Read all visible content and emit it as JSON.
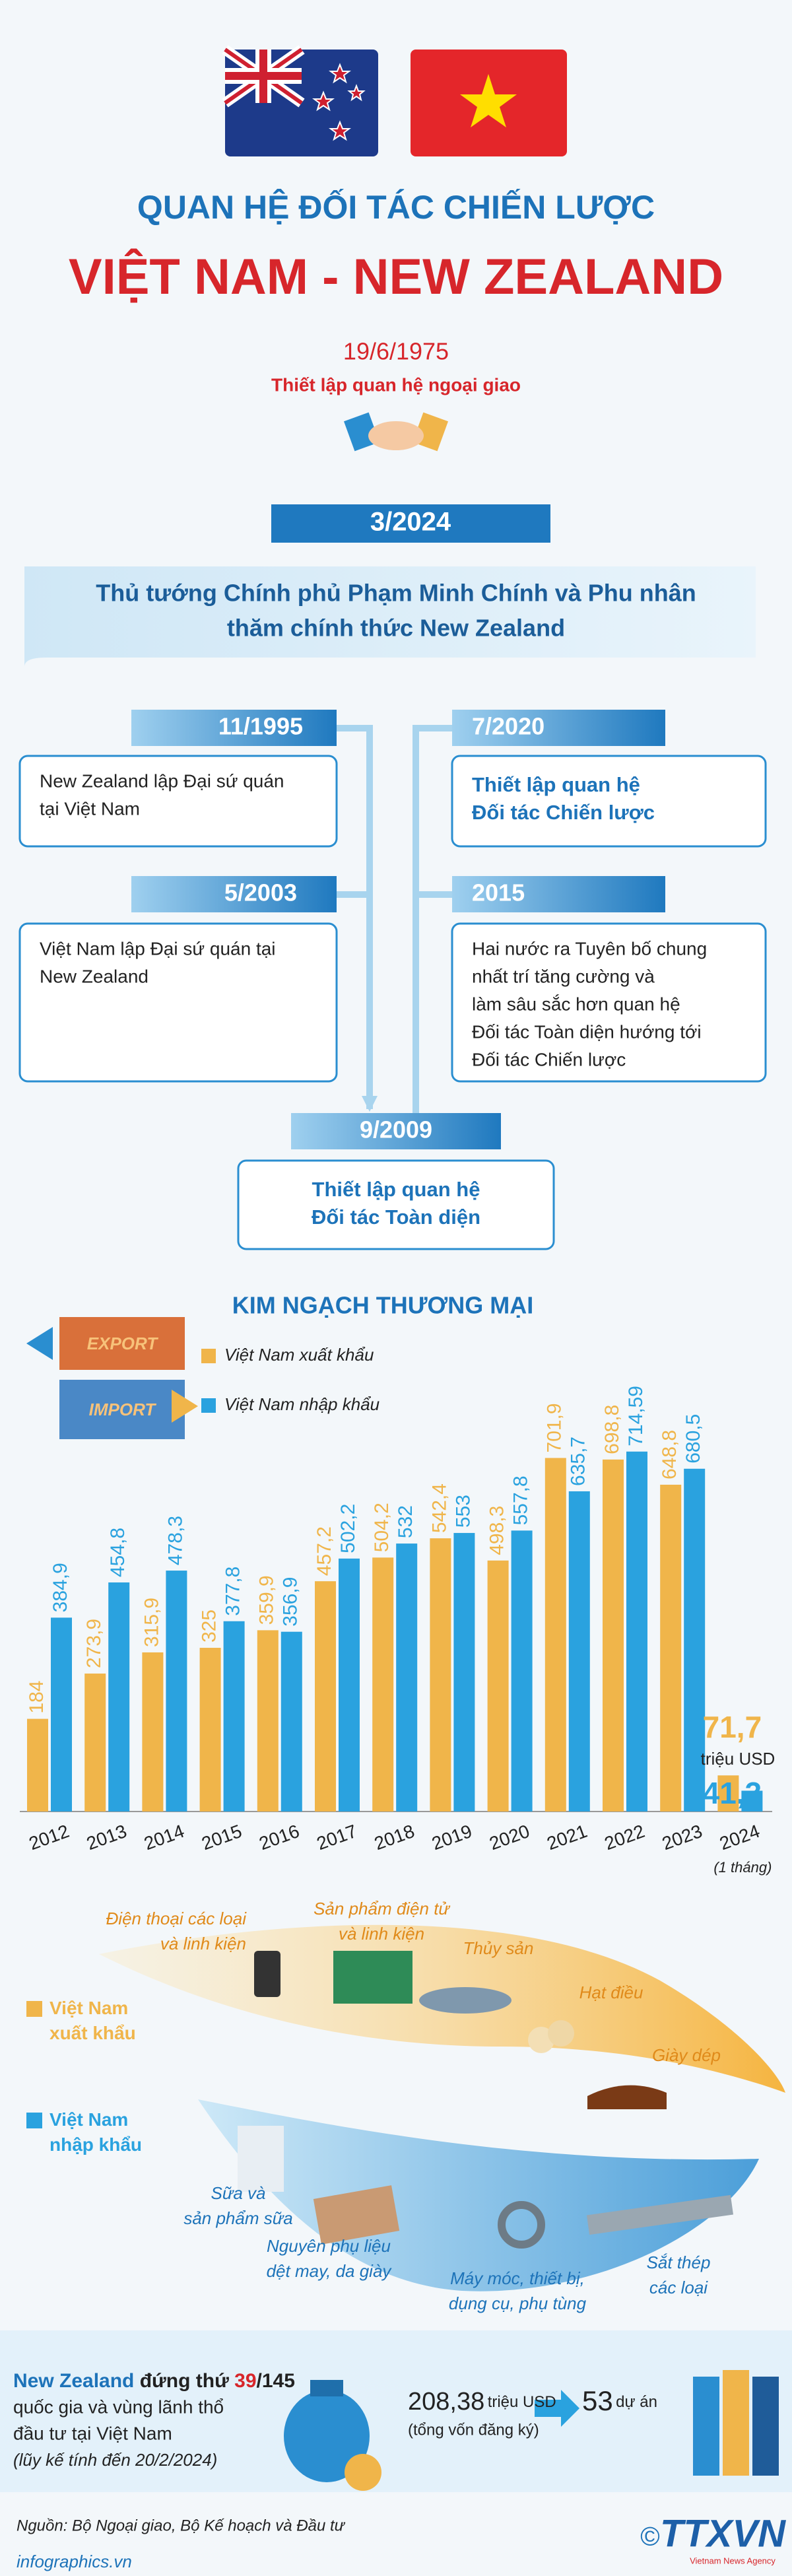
{
  "header": {
    "title": "QUAN HỆ ĐỐI TÁC CHIẾN LƯỢC",
    "subtitle": "VIỆT NAM - NEW ZEALAND",
    "date": "19/6/1975",
    "date_note": "Thiết lập quan hệ ngoại giao"
  },
  "highlight": {
    "date": "3/2024",
    "lines": [
      "Thủ tướng Chính phủ Phạm Minh Chính và Phu nhân",
      "thăm chính thức New Zealand"
    ]
  },
  "timeline": [
    {
      "date": "11/1995",
      "lines": [
        "New Zealand lập Đại sứ quán",
        "tại Việt Nam"
      ]
    },
    {
      "date": "5/2003",
      "lines": [
        "Việt Nam lập Đại sứ quán tại",
        "New Zealand"
      ]
    },
    {
      "date": "7/2020",
      "lines": [
        "Thiết lập quan hệ",
        "Đối tác Chiến lược"
      ]
    },
    {
      "date": "2015",
      "lines": [
        "Hai nước ra Tuyên bố chung",
        "nhất trí tăng cường và",
        "làm sâu sắc hơn quan hệ",
        "Đối tác Toàn diện hướng tới",
        "Đối tác Chiến lược"
      ]
    },
    {
      "date": "9/2009",
      "lines": [
        "Thiết lập quan hệ",
        "Đối tác Toàn diện"
      ]
    }
  ],
  "chart_data": {
    "type": "bar",
    "title": "KIM NGẠCH THƯƠNG MẠI",
    "unit": "triệu USD",
    "categories": [
      "2012",
      "2013",
      "2014",
      "2015",
      "2016",
      "2017",
      "2018",
      "2019",
      "2020",
      "2021",
      "2022",
      "2023",
      "2024"
    ],
    "category_notes": [
      null,
      null,
      null,
      null,
      null,
      null,
      null,
      null,
      null,
      null,
      null,
      null,
      "(1 tháng)"
    ],
    "series": [
      {
        "name": "Việt Nam xuất khẩu",
        "color": "#f0b54a",
        "values": [
          184,
          273.9,
          315.9,
          325,
          359.9,
          457.2,
          504.2,
          542.4,
          498.3,
          701.9,
          698.8,
          648.8,
          71.7
        ],
        "value_labels": [
          "184",
          "273,9",
          "315,9",
          "325",
          "359,9",
          "457,2",
          "504,2",
          "542,4",
          "498,3",
          "701,9",
          "698,8",
          "648,8",
          "71,7"
        ]
      },
      {
        "name": "Việt Nam nhập khẩu",
        "color": "#2aa2df",
        "values": [
          384.9,
          454.8,
          478.3,
          377.8,
          356.9,
          502.2,
          532,
          553,
          557.8,
          635.7,
          714.59,
          680.5,
          41.3
        ],
        "value_labels": [
          "384,9",
          "454,8",
          "478,3",
          "377,8",
          "356,9",
          "502,2",
          "532",
          "553",
          "557,8",
          "635,7",
          "714,59",
          "680,5",
          "41,3"
        ]
      }
    ]
  },
  "products": {
    "exports": [
      {
        "lines": [
          "Điện thoại các loại",
          "và linh kiện"
        ]
      },
      {
        "lines": [
          "Sản phẩm điện tử",
          "và linh kiện"
        ]
      },
      {
        "lines": [
          "Thủy sản"
        ]
      },
      {
        "lines": [
          "Hạt điều"
        ]
      },
      {
        "lines": [
          "Giày dép"
        ]
      }
    ],
    "imports": [
      {
        "lines": [
          "Sữa và",
          "sản phẩm sữa"
        ]
      },
      {
        "lines": [
          "Nguyên phụ liệu",
          "dệt may, da giày"
        ]
      },
      {
        "lines": [
          "Máy móc, thiết bị,",
          "dụng cụ, phụ tùng"
        ]
      },
      {
        "lines": [
          "Sắt thép",
          "các loại"
        ]
      }
    ]
  },
  "investment": {
    "country": "New Zealand",
    "rank_text": "đứng thứ",
    "rank": "39",
    "total": "/145",
    "lines": [
      "quốc gia và vùng lãnh thổ",
      "đầu tư tại Việt Nam"
    ],
    "note": "(lũy kế tính đến 20/2/2024)",
    "capital": "208,38",
    "capital_unit": "triệu USD",
    "capital_note": "(tổng vốn đăng ký)",
    "projects": "53",
    "projects_unit": "dự án"
  },
  "footer": {
    "source": "Nguồn: Bộ Ngoại giao, Bộ Kế hoạch và Đầu tư",
    "website": "infographics.vn",
    "copyright": "©",
    "logo": "TTXVN",
    "logo_note": "Vietnam News Agency"
  }
}
